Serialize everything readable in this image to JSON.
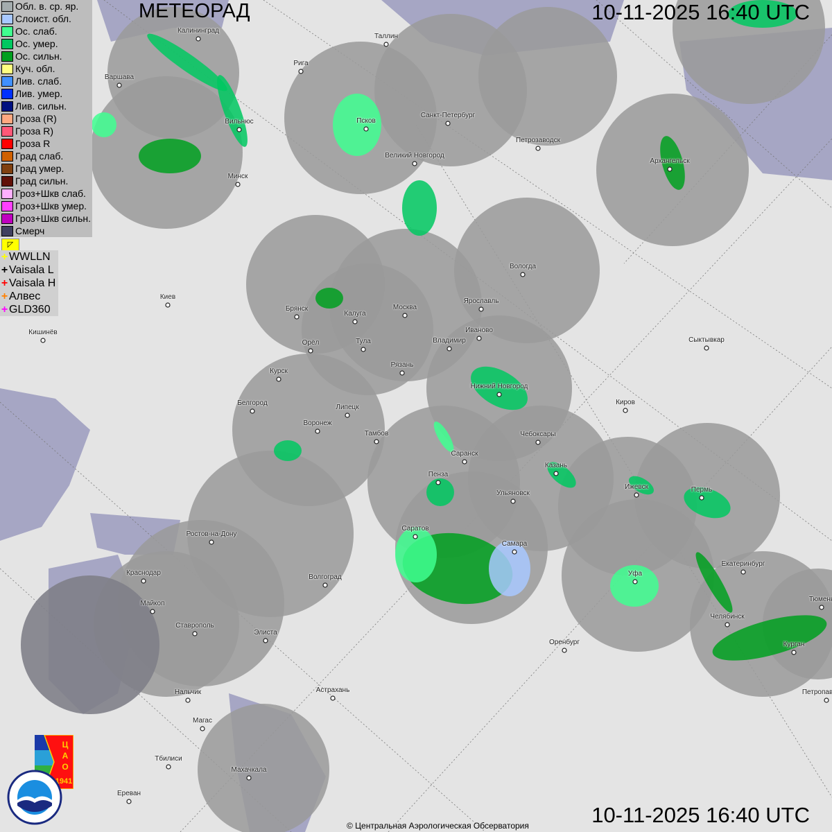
{
  "header": {
    "title": "МЕТЕОРАД",
    "timestamp": "10-11-2025  16:40 UTC"
  },
  "legend": [
    {
      "label": "Обл. в. ср. яр.",
      "color": "#a4acae"
    },
    {
      "label": "Слоист. обл.",
      "color": "#a8c8ff"
    },
    {
      "label": "Ос. слаб.",
      "color": "#40ff90"
    },
    {
      "label": "Ос. умер.",
      "color": "#00c860"
    },
    {
      "label": "Ос. сильн.",
      "color": "#00a020"
    },
    {
      "label": "Куч. обл.",
      "color": "#ffff80"
    },
    {
      "label": "Лив. слаб.",
      "color": "#4090ff"
    },
    {
      "label": "Лив. умер.",
      "color": "#0030ff"
    },
    {
      "label": "Лив. сильн.",
      "color": "#001080"
    },
    {
      "label": "Гроза (R)",
      "color": "#ffa880"
    },
    {
      "label": "Гроза R)",
      "color": "#ff5878"
    },
    {
      "label": "Гроза R",
      "color": "#ff0000"
    },
    {
      "label": "Град слаб.",
      "color": "#d06000"
    },
    {
      "label": "Град умер.",
      "color": "#804010"
    },
    {
      "label": "Град сильн.",
      "color": "#601008"
    },
    {
      "label": "Гроз+Шкв слаб.",
      "color": "#ffb0ff"
    },
    {
      "label": "Гроз+Шкв умер.",
      "color": "#ff40ff"
    },
    {
      "label": "Гроз+Шкв сильн.",
      "color": "#c000c0"
    },
    {
      "label": "Смерч",
      "color": "#404060"
    }
  ],
  "lightning_toggle_icon": "arrow-up-left-icon",
  "lightning_networks": [
    {
      "label": "WWLLN",
      "color": "#ffff00"
    },
    {
      "label": "Vaisala L",
      "color": "#000000"
    },
    {
      "label": "Vaisala H",
      "color": "#ff0000"
    },
    {
      "label": "Алвес",
      "color": "#ff8000"
    },
    {
      "label": "GLD360",
      "color": "#ff00ff"
    }
  ],
  "cities": [
    "Калининград",
    "Таллин",
    "Рига",
    "Варшава",
    "Санкт-Петербург",
    "Псков",
    "Вильнюс",
    "Петрозаводск",
    "Великий Новгород",
    "Архангельск",
    "Минск",
    "Вологда",
    "Киев",
    "Брянск",
    "Москва",
    "Ярославль",
    "Калуга",
    "Иваново",
    "Кишинёв",
    "Орёл",
    "Тула",
    "Владимир",
    "Сыктывкар",
    "Рязань",
    "Курск",
    "Нижний Новгород",
    "Белгород",
    "Липецк",
    "Киров",
    "Воронеж",
    "Тамбов",
    "Чебоксары",
    "Саранск",
    "Казань",
    "Пенза",
    "Ижевск",
    "Пермь",
    "Ульяновск",
    "Ростов-на-Дону",
    "Саратов",
    "Самара",
    "Екатеринбург",
    "Краснодар",
    "Уфа",
    "Волгоград",
    "Тюмень",
    "Майкоп",
    "Челябинск",
    "Ставрополь",
    "Элиста",
    "Оренбург",
    "Курган",
    "Астрахань",
    "Нальчик",
    "Петропавловск",
    "Магас",
    "Тбилиси",
    "Махачкала",
    "Ереван"
  ],
  "logos": {
    "cao": "ЦАО 1941",
    "roshydromet": "РОСГИДРОМЕТ ROSHYDROMET"
  },
  "footer": {
    "copyright": "© Центральная Аэрологическая Обсерватория"
  },
  "colors": {
    "radar_coverage": "#9a9a9a",
    "sea": "#a6a6c4",
    "land": "#e4e4e4"
  }
}
